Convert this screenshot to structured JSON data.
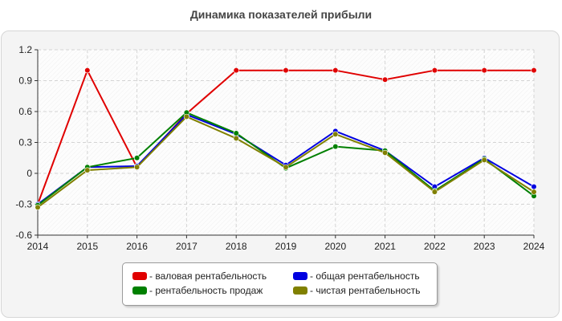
{
  "chart_data": {
    "type": "line",
    "title": "Динамика показателей прибыли",
    "x": [
      "2014",
      "2015",
      "2016",
      "2017",
      "2018",
      "2019",
      "2020",
      "2021",
      "2022",
      "2023",
      "2024"
    ],
    "ylim": [
      -0.6,
      1.2
    ],
    "yticks": [
      "1.2",
      "0.9",
      "0.6",
      "0.3",
      "0",
      "-0.3",
      "-0.6"
    ],
    "ytick_values": [
      1.2,
      0.9,
      0.6,
      0.3,
      0,
      -0.3,
      -0.6
    ],
    "grid": true,
    "legend_position": "bottom-center",
    "series": [
      {
        "name": "- валовая рентабельность",
        "color": "#e00000",
        "values": [
          -0.3,
          1.0,
          0.06,
          0.58,
          1.0,
          1.0,
          1.0,
          0.91,
          1.0,
          1.0,
          1.0
        ]
      },
      {
        "name": "- общая рентабельность",
        "color": "#0000e0",
        "values": [
          -0.3,
          0.06,
          0.07,
          0.57,
          0.38,
          0.08,
          0.41,
          0.22,
          -0.13,
          0.15,
          -0.13
        ]
      },
      {
        "name": "- рентабельность продаж",
        "color": "#008000",
        "values": [
          -0.31,
          0.06,
          0.15,
          0.59,
          0.39,
          0.05,
          0.26,
          0.22,
          -0.17,
          0.14,
          -0.22
        ]
      },
      {
        "name": "- чистая рентабельность",
        "color": "#808000",
        "values": [
          -0.33,
          0.03,
          0.06,
          0.55,
          0.34,
          0.06,
          0.38,
          0.2,
          -0.18,
          0.13,
          -0.18
        ]
      }
    ],
    "legend_order": [
      0,
      1,
      2,
      3
    ]
  }
}
